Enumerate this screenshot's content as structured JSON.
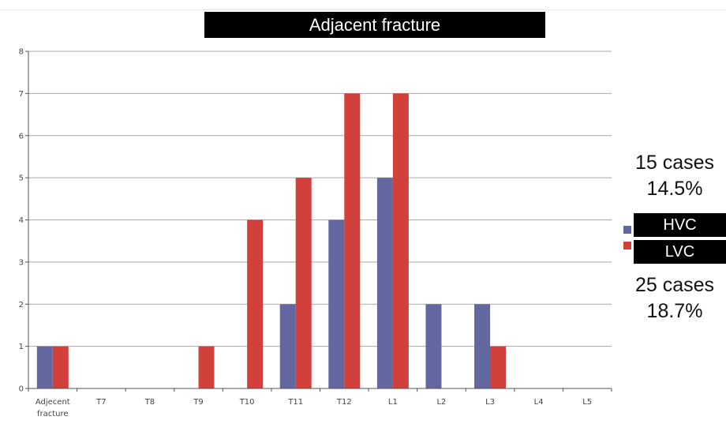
{
  "chart_data": {
    "type": "bar",
    "title": "Adjacent fracture",
    "categories": [
      "Adjecent fracture",
      "T7",
      "T8",
      "T9",
      "T10",
      "T11",
      "T12",
      "L1",
      "L2",
      "L3",
      "L4",
      "L5"
    ],
    "series": [
      {
        "name": "HVC",
        "color": "#6367a0",
        "values": [
          1,
          0,
          0,
          0,
          0,
          2,
          4,
          5,
          2,
          2,
          0,
          0
        ]
      },
      {
        "name": "LVC",
        "color": "#d2403c",
        "values": [
          1,
          0,
          0,
          1,
          4,
          5,
          7,
          7,
          0,
          1,
          0,
          0
        ]
      }
    ],
    "ylim": [
      0,
      8
    ],
    "yticks": [
      0,
      1,
      2,
      3,
      4,
      5,
      6,
      7,
      8
    ],
    "grid": true,
    "legend": "right"
  },
  "stats": {
    "hvc": {
      "cases": "15 cases",
      "percent": "14.5%"
    },
    "lvc": {
      "cases": "25 cases",
      "percent": "18.7%"
    }
  }
}
